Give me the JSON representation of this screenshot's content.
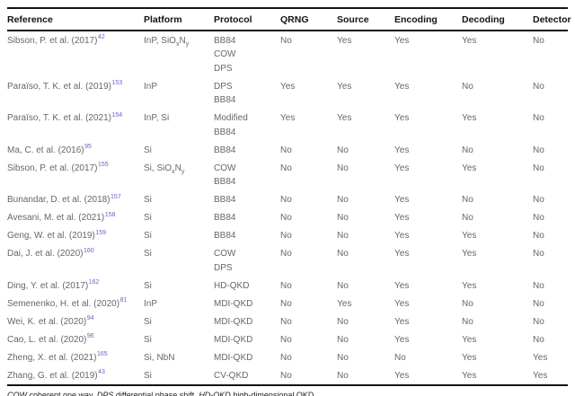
{
  "colors": {
    "citation_link": "#6365cc",
    "body_text": "#66666e",
    "header_text": "#131313",
    "rule": "#131313"
  },
  "table": {
    "columns": [
      "Reference",
      "Platform",
      "Protocol",
      "QRNG",
      "Source",
      "Encoding",
      "Decoding",
      "Detector"
    ],
    "rows": [
      {
        "reference": "Sibson, P. et al. (2017)",
        "ref_sup": "42",
        "platform": [
          {
            "t": "InP, SiO"
          },
          {
            "t": "x",
            "sub": true
          },
          {
            "t": "N"
          },
          {
            "t": "y",
            "sub": true
          }
        ],
        "protocol": [
          "BB84",
          "COW",
          "DPS"
        ],
        "qrng": "No",
        "source": "Yes",
        "encoding": "Yes",
        "decoding": "Yes",
        "detector": "No"
      },
      {
        "reference": "Paraïso, T. K. et al. (2019)",
        "ref_sup": "153",
        "platform": [
          {
            "t": "InP"
          }
        ],
        "protocol": [
          "DPS",
          "BB84"
        ],
        "qrng": "Yes",
        "source": "Yes",
        "encoding": "Yes",
        "decoding": "No",
        "detector": "No"
      },
      {
        "reference": "Paraïso, T. K. et al. (2021)",
        "ref_sup": "154",
        "platform": [
          {
            "t": "InP, Si"
          }
        ],
        "protocol": [
          "Modified",
          "BB84"
        ],
        "qrng": "Yes",
        "source": "Yes",
        "encoding": "Yes",
        "decoding": "Yes",
        "detector": "No"
      },
      {
        "reference": "Ma, C. et al. (2016)",
        "ref_sup": "95",
        "platform": [
          {
            "t": "Si"
          }
        ],
        "protocol": [
          "BB84"
        ],
        "qrng": "No",
        "source": "No",
        "encoding": "Yes",
        "decoding": "No",
        "detector": "No"
      },
      {
        "reference": "Sibson, P. et al. (2017)",
        "ref_sup": "155",
        "platform": [
          {
            "t": "Si, SiO"
          },
          {
            "t": "x",
            "sub": true
          },
          {
            "t": "N"
          },
          {
            "t": "y",
            "sub": true
          }
        ],
        "protocol": [
          "COW",
          "BB84"
        ],
        "qrng": "No",
        "source": "No",
        "encoding": "Yes",
        "decoding": "Yes",
        "detector": "No"
      },
      {
        "reference": "Bunandar, D. et al. (2018)",
        "ref_sup": "157",
        "platform": [
          {
            "t": "Si"
          }
        ],
        "protocol": [
          "BB84"
        ],
        "qrng": "No",
        "source": "No",
        "encoding": "Yes",
        "decoding": "No",
        "detector": "No"
      },
      {
        "reference": "Avesani, M. et al. (2021)",
        "ref_sup": "158",
        "platform": [
          {
            "t": "Si"
          }
        ],
        "protocol": [
          "BB84"
        ],
        "qrng": "No",
        "source": "No",
        "encoding": "Yes",
        "decoding": "No",
        "detector": "No"
      },
      {
        "reference": "Geng, W. et al. (2019)",
        "ref_sup": "159",
        "platform": [
          {
            "t": "Si"
          }
        ],
        "protocol": [
          "BB84"
        ],
        "qrng": "No",
        "source": "No",
        "encoding": "Yes",
        "decoding": "Yes",
        "detector": "No"
      },
      {
        "reference": "Dai, J. et al. (2020)",
        "ref_sup": "160",
        "platform": [
          {
            "t": "Si"
          }
        ],
        "protocol": [
          "COW",
          "DPS"
        ],
        "qrng": "No",
        "source": "No",
        "encoding": "Yes",
        "decoding": "Yes",
        "detector": "No"
      },
      {
        "reference": "Ding, Y. et al. (2017)",
        "ref_sup": "162",
        "platform": [
          {
            "t": "Si"
          }
        ],
        "protocol": [
          "HD-QKD"
        ],
        "qrng": "No",
        "source": "No",
        "encoding": "Yes",
        "decoding": "Yes",
        "detector": "No"
      },
      {
        "reference": "Semenenko, H. et al. (2020)",
        "ref_sup": "81",
        "platform": [
          {
            "t": "InP"
          }
        ],
        "protocol": [
          "MDI-QKD"
        ],
        "qrng": "No",
        "source": "Yes",
        "encoding": "Yes",
        "decoding": "No",
        "detector": "No"
      },
      {
        "reference": "Wei, K. et al. (2020)",
        "ref_sup": "94",
        "platform": [
          {
            "t": "Si"
          }
        ],
        "protocol": [
          "MDI-QKD"
        ],
        "qrng": "No",
        "source": "No",
        "encoding": "Yes",
        "decoding": "No",
        "detector": "No"
      },
      {
        "reference": "Cao, L. et al. (2020)",
        "ref_sup": "96",
        "platform": [
          {
            "t": "Si"
          }
        ],
        "protocol": [
          "MDI-QKD"
        ],
        "qrng": "No",
        "source": "No",
        "encoding": "Yes",
        "decoding": "Yes",
        "detector": "No"
      },
      {
        "reference": "Zheng, X. et al. (2021)",
        "ref_sup": "165",
        "platform": [
          {
            "t": "Si, NbN"
          }
        ],
        "protocol": [
          "MDI-QKD"
        ],
        "qrng": "No",
        "source": "No",
        "encoding": "No",
        "decoding": "Yes",
        "detector": "Yes"
      },
      {
        "reference": "Zhang, G. et al. (2019)",
        "ref_sup": "43",
        "platform": [
          {
            "t": "Si"
          }
        ],
        "protocol": [
          "CV-QKD"
        ],
        "qrng": "No",
        "source": "No",
        "encoding": "Yes",
        "decoding": "Yes",
        "detector": "Yes"
      }
    ],
    "footnote": [
      {
        "t": "COW",
        "i": true
      },
      {
        "t": " coherent one way, "
      },
      {
        "t": "DPS",
        "i": true
      },
      {
        "t": " differential phase shift, "
      },
      {
        "t": "HD-QKD",
        "i": true
      },
      {
        "t": " high-dimensional QKD"
      }
    ]
  }
}
